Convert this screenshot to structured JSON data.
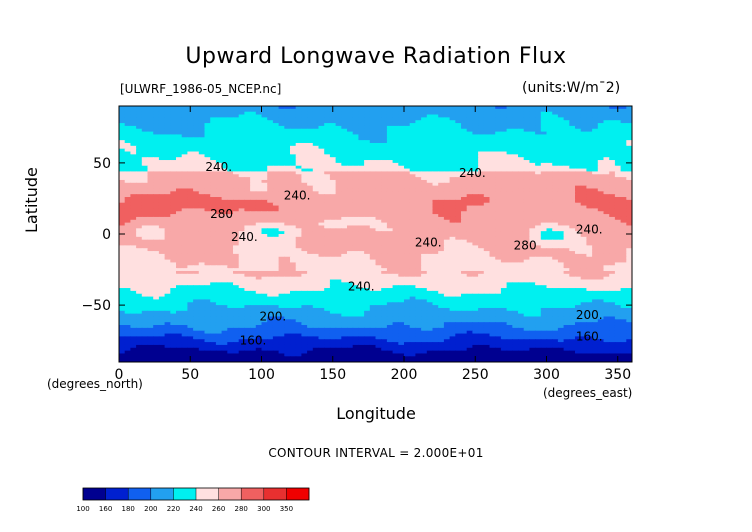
{
  "chart_data": {
    "type": "heatmap",
    "title": "Upward Longwave Radiation Flux",
    "file_label": "[ULWRF_1986-05_NCEP.nc]",
    "units_label": "(units:W/m^2)",
    "xlabel": "Longitude",
    "ylabel": "Latitude",
    "x_units": "(degrees_east)",
    "y_units": "(degrees_north)",
    "xlim": [
      0,
      360
    ],
    "ylim": [
      -90,
      90
    ],
    "x_ticks": [
      0,
      50,
      100,
      150,
      200,
      250,
      300,
      350
    ],
    "y_ticks": [
      -50,
      0,
      50
    ],
    "contour_interval": "CONTOUR INTERVAL = 2.000E+01",
    "colorbar": {
      "levels": [
        100,
        160,
        180,
        200,
        220,
        240,
        260,
        280,
        300,
        350
      ],
      "colors": [
        "#000090",
        "#0020d0",
        "#1060f0",
        "#22a0f0",
        "#00f0f0",
        "#ffe0e0",
        "#f8a8a8",
        "#f06060",
        "#e83030",
        "#f00000"
      ]
    },
    "contour_labels": [
      {
        "text": "240.",
        "lon": 70,
        "lat": 47
      },
      {
        "text": "240.",
        "lon": 248,
        "lat": 43
      },
      {
        "text": "240.",
        "lon": 125,
        "lat": 27
      },
      {
        "text": "280",
        "lon": 72,
        "lat": 14
      },
      {
        "text": "240.",
        "lon": 88,
        "lat": -2
      },
      {
        "text": "240.",
        "lon": 217,
        "lat": -6
      },
      {
        "text": "280",
        "lon": 285,
        "lat": -8
      },
      {
        "text": "240.",
        "lon": 330,
        "lat": 3
      },
      {
        "text": "240.",
        "lon": 170,
        "lat": -37
      },
      {
        "text": "200.",
        "lon": 108,
        "lat": -58
      },
      {
        "text": "200.",
        "lon": 330,
        "lat": -57
      },
      {
        "text": "160.",
        "lon": 94,
        "lat": -75
      },
      {
        "text": "160.",
        "lon": 330,
        "lat": -72
      }
    ]
  }
}
